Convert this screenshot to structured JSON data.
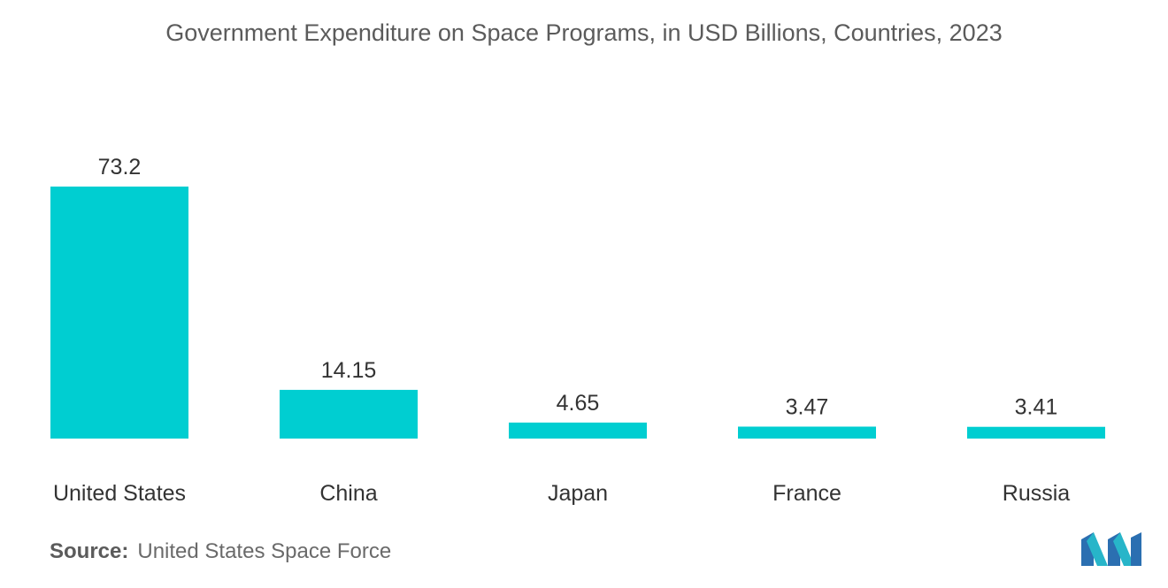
{
  "title": "Government Expenditure on Space Programs, in USD Billions, Countries, 2023",
  "source": {
    "label": "Source:",
    "text": "United States Space Force"
  },
  "colors": {
    "bar": "#00ced1",
    "text": "#333333"
  },
  "chart_data": {
    "type": "bar",
    "title": "Government Expenditure on Space Programs, in USD Billions, Countries, 2023",
    "categories": [
      "United States",
      "China",
      "Japan",
      "France",
      "Russia"
    ],
    "values": [
      73.2,
      14.15,
      4.65,
      3.47,
      3.41
    ],
    "value_labels": [
      "73.2",
      "14.15",
      "4.65",
      "3.47",
      "3.41"
    ],
    "xlabel": "",
    "ylabel": "",
    "ylim": [
      0,
      73.2
    ],
    "grid": false,
    "legend": "none"
  }
}
